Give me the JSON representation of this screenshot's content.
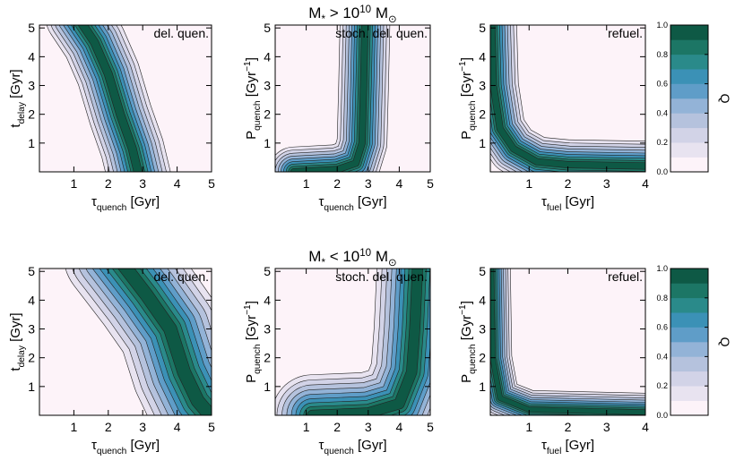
{
  "chart_data": [
    {
      "type": "contour",
      "annotation": "del. quen.",
      "xlabel": [
        {
          "text": "τ"
        },
        {
          "text": "quench",
          "pos": "sub"
        },
        {
          "text": " [Gyr]"
        }
      ],
      "ylabel": [
        {
          "text": "t"
        },
        {
          "text": "delay",
          "pos": "sub"
        },
        {
          "text": " [Gyr]"
        }
      ],
      "xlim": [
        0,
        5
      ],
      "ylim": [
        0,
        5.1
      ],
      "xticks": [
        1,
        2,
        3,
        4,
        5
      ],
      "yticks": [
        1,
        2,
        3,
        4,
        5
      ]
    },
    {
      "type": "contour",
      "annotation": "stoch. del. quen.",
      "title": [
        {
          "text": "M"
        },
        {
          "text": "*",
          "pos": "sub"
        },
        {
          "text": " > 10"
        },
        {
          "text": "10",
          "pos": "sup"
        },
        {
          "text": " M"
        },
        {
          "text": "⊙",
          "pos": "sub"
        }
      ],
      "xlabel": [
        {
          "text": "τ"
        },
        {
          "text": "quench",
          "pos": "sub"
        },
        {
          "text": " [Gyr]"
        }
      ],
      "ylabel": [
        {
          "text": "P"
        },
        {
          "text": "quench",
          "pos": "sub"
        },
        {
          "text": " [Gyr"
        },
        {
          "text": "−1",
          "pos": "sup"
        },
        {
          "text": "]"
        }
      ],
      "xlim": [
        0,
        5
      ],
      "ylim": [
        0,
        5.1
      ],
      "xticks": [
        1,
        2,
        3,
        4,
        5
      ],
      "yticks": [
        1,
        2,
        3,
        4,
        5
      ]
    },
    {
      "type": "contour",
      "annotation": "refuel.",
      "xlabel": [
        {
          "text": "τ"
        },
        {
          "text": "fuel",
          "pos": "sub"
        },
        {
          "text": " [Gyr]"
        }
      ],
      "ylabel": [
        {
          "text": "P"
        },
        {
          "text": "quench",
          "pos": "sub"
        },
        {
          "text": " [Gyr"
        },
        {
          "text": "−1",
          "pos": "sup"
        },
        {
          "text": "]"
        }
      ],
      "xlim": [
        0,
        4
      ],
      "ylim": [
        0,
        5.1
      ],
      "xticks": [
        1,
        2,
        3,
        4
      ],
      "yticks": [
        1,
        2,
        3,
        4,
        5
      ]
    },
    {
      "type": "colorbar",
      "label": "Q",
      "ylim": [
        0,
        1
      ],
      "yticks": [
        {
          "value": 0,
          "label": "0.0"
        },
        {
          "value": 0.2,
          "label": "0.2"
        },
        {
          "value": 0.4,
          "label": "0.4"
        },
        {
          "value": 0.6,
          "label": "0.6"
        },
        {
          "value": 0.8,
          "label": "0.8"
        },
        {
          "value": 1,
          "label": "1.0"
        }
      ],
      "colors": [
        "#fdf3f9",
        "#e8e3f0",
        "#d2d3e7",
        "#b5c2dd",
        "#93b3d7",
        "#5f9dc8",
        "#3b91b6",
        "#2a8a8a",
        "#1c7665",
        "#0e5945"
      ]
    },
    {
      "type": "contour",
      "annotation": "del. quen.",
      "xlabel": [
        {
          "text": "τ"
        },
        {
          "text": "quench",
          "pos": "sub"
        },
        {
          "text": " [Gyr]"
        }
      ],
      "ylabel": [
        {
          "text": "t"
        },
        {
          "text": "delay",
          "pos": "sub"
        },
        {
          "text": " [Gyr]"
        }
      ],
      "xlim": [
        0,
        5
      ],
      "ylim": [
        0,
        5.1
      ],
      "xticks": [
        1,
        2,
        3,
        4,
        5
      ],
      "yticks": [
        1,
        2,
        3,
        4,
        5
      ]
    },
    {
      "type": "contour",
      "annotation": "stoch. del. quen.",
      "title": [
        {
          "text": "M"
        },
        {
          "text": "*",
          "pos": "sub"
        },
        {
          "text": " < 10"
        },
        {
          "text": "10",
          "pos": "sup"
        },
        {
          "text": " M"
        },
        {
          "text": "⊙",
          "pos": "sub"
        }
      ],
      "xlabel": [
        {
          "text": "τ"
        },
        {
          "text": "quench",
          "pos": "sub"
        },
        {
          "text": " [Gyr]"
        }
      ],
      "ylabel": [
        {
          "text": "P"
        },
        {
          "text": "quench",
          "pos": "sub"
        },
        {
          "text": " [Gyr"
        },
        {
          "text": "−1",
          "pos": "sup"
        },
        {
          "text": "]"
        }
      ],
      "xlim": [
        0,
        5
      ],
      "ylim": [
        0,
        5.1
      ],
      "xticks": [
        1,
        2,
        3,
        4,
        5
      ],
      "yticks": [
        1,
        2,
        3,
        4,
        5
      ]
    },
    {
      "type": "contour",
      "annotation": "refuel.",
      "xlabel": [
        {
          "text": "τ"
        },
        {
          "text": "fuel",
          "pos": "sub"
        },
        {
          "text": " [Gyr]"
        }
      ],
      "ylabel": [
        {
          "text": "P"
        },
        {
          "text": "quench",
          "pos": "sub"
        },
        {
          "text": " [Gyr"
        },
        {
          "text": "−1",
          "pos": "sup"
        },
        {
          "text": "]"
        }
      ],
      "xlim": [
        0,
        4
      ],
      "ylim": [
        0,
        5.1
      ],
      "xticks": [
        1,
        2,
        3,
        4
      ],
      "yticks": [
        1,
        2,
        3,
        4,
        5
      ]
    },
    {
      "type": "colorbar",
      "label": "Q",
      "ylim": [
        0,
        1
      ],
      "yticks": [
        {
          "value": 0,
          "label": "0.0"
        },
        {
          "value": 0.2,
          "label": "0.2"
        },
        {
          "value": 0.4,
          "label": "0.4"
        },
        {
          "value": 0.6,
          "label": "0.6"
        },
        {
          "value": 0.8,
          "label": "0.8"
        },
        {
          "value": 1,
          "label": "1.0"
        }
      ],
      "colors": [
        "#fdf3f9",
        "#e8e3f0",
        "#d2d3e7",
        "#b5c2dd",
        "#93b3d7",
        "#5f9dc8",
        "#3b91b6",
        "#2a8a8a",
        "#1c7665",
        "#0e5945"
      ]
    }
  ]
}
